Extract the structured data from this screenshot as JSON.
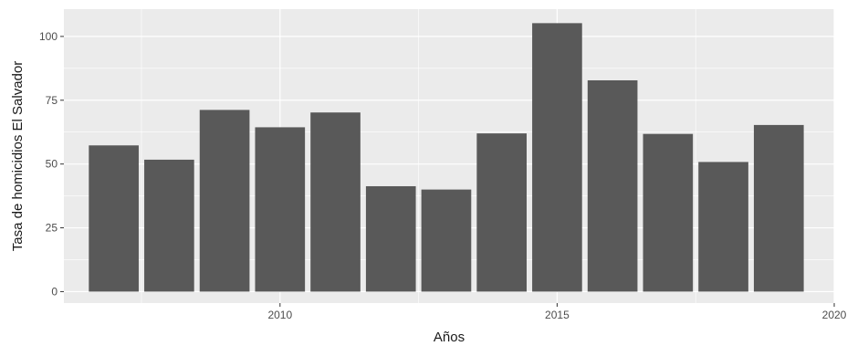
{
  "chart_data": {
    "type": "bar",
    "x": [
      2007,
      2008,
      2009,
      2010,
      2011,
      2012,
      2013,
      2014,
      2015,
      2016,
      2017,
      2018,
      2019
    ],
    "values": [
      57.3,
      51.7,
      71.2,
      64.4,
      70.2,
      41.3,
      40.0,
      62.0,
      105.2,
      82.8,
      61.8,
      50.8,
      65.3
    ],
    "xlabel": "Años",
    "ylabel": "Tasa de homicidios El Salvador",
    "xlim": [
      2006.1,
      2020
    ],
    "ylim": [
      -4.5,
      110.7
    ],
    "x_ticks": [
      2010,
      2015,
      2020
    ],
    "x_tick_labels": [
      "2010",
      "2015",
      "2020"
    ],
    "y_ticks": [
      0,
      25,
      50,
      75,
      100
    ],
    "y_tick_labels": [
      "0",
      "25",
      "50",
      "75",
      "100"
    ],
    "grid": true,
    "colors": {
      "bar": "#595959",
      "panel": "#ebebeb",
      "grid": "#ffffff"
    }
  }
}
